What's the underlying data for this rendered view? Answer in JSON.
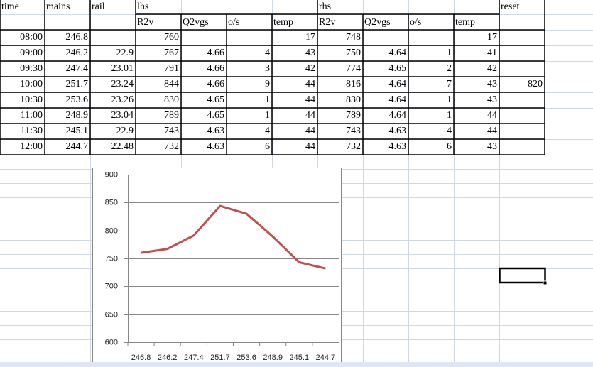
{
  "table": {
    "header": [
      "time",
      "mains",
      "rail",
      "lhs",
      "rhs",
      "reset"
    ],
    "subheader": [
      "R2v",
      "Q2vgs",
      "o/s",
      "temp",
      "R2v",
      "Q2vgs",
      "o/s",
      "temp"
    ],
    "rows": [
      [
        "08:00",
        246.8,
        null,
        760,
        null,
        null,
        17,
        748,
        null,
        null,
        17,
        null
      ],
      [
        "09:00",
        246.2,
        22.9,
        767,
        4.66,
        4,
        43,
        750,
        4.64,
        1,
        41,
        null
      ],
      [
        "09:30",
        247.4,
        23.01,
        791,
        4.66,
        3,
        42,
        774,
        4.65,
        2,
        42,
        null
      ],
      [
        "10:00",
        251.7,
        23.24,
        844,
        4.66,
        9,
        44,
        816,
        4.64,
        7,
        43,
        820
      ],
      [
        "10:30",
        253.6,
        23.26,
        830,
        4.65,
        1,
        44,
        830,
        4.64,
        1,
        43,
        null
      ],
      [
        "11:00",
        248.9,
        23.04,
        789,
        4.65,
        1,
        44,
        789,
        4.64,
        1,
        44,
        null
      ],
      [
        "11:30",
        245.1,
        22.9,
        743,
        4.63,
        4,
        44,
        743,
        4.63,
        4,
        44,
        null
      ],
      [
        "12:00",
        244.7,
        22.48,
        732,
        4.63,
        6,
        44,
        732,
        4.63,
        6,
        43,
        null
      ]
    ]
  },
  "chart_data": {
    "type": "line",
    "categories": [
      "246.8",
      "246.2",
      "247.4",
      "251.7",
      "253.6",
      "248.9",
      "245.1",
      "244.7"
    ],
    "values": [
      760,
      767,
      791,
      844,
      830,
      789,
      743,
      732
    ],
    "color": "#c0504d",
    "ylim": [
      600,
      900
    ],
    "yticks": [
      600,
      650,
      700,
      750,
      800,
      850,
      900
    ],
    "grid": true
  }
}
